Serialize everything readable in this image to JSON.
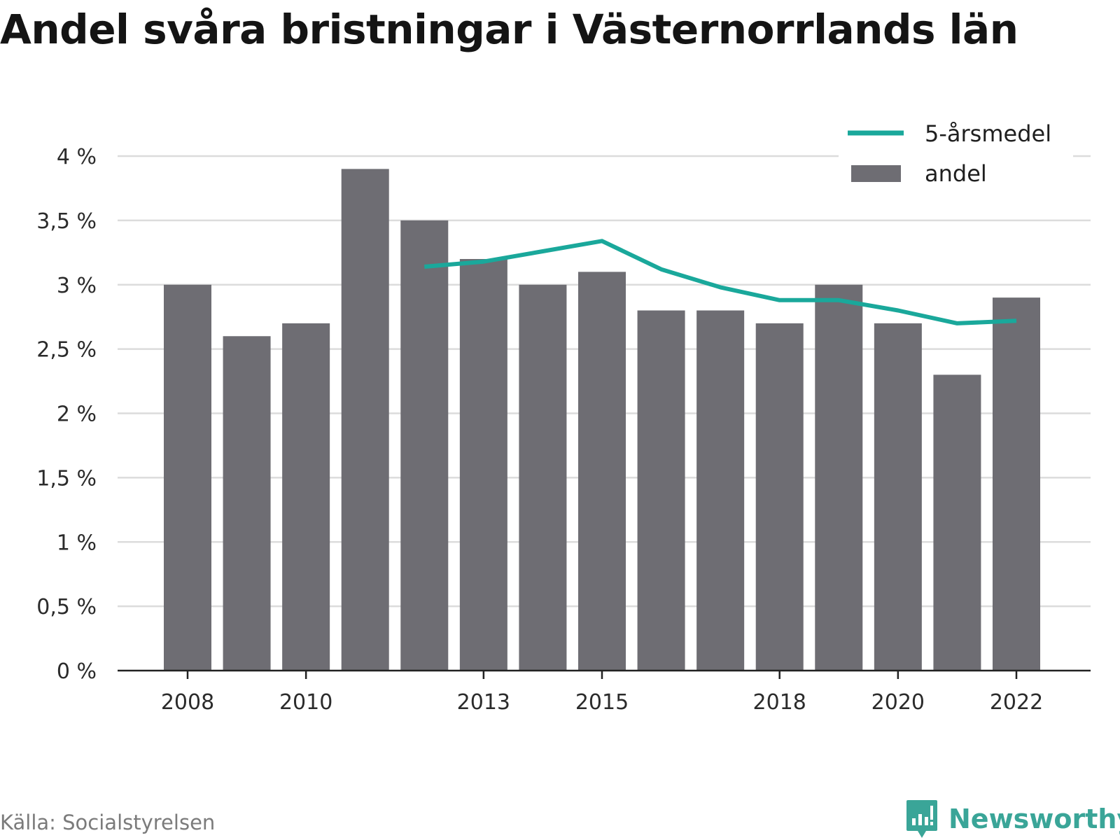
{
  "title": "Andel svåra bristningar i Västernorrlands län",
  "source": "Källa: Socialstyrelsen",
  "brand": {
    "name": "Newsworthy",
    "icon": "newsworthy-logo-icon"
  },
  "colors": {
    "bar": "#6e6d73",
    "line": "#1aa89b",
    "grid": "#dcdcdc",
    "axis": "#222222",
    "brand": "#3aa598"
  },
  "chart_data": {
    "type": "bar",
    "title": "Andel svåra bristningar i Västernorrlands län",
    "xlabel": "",
    "ylabel": "",
    "ylim": [
      0,
      4
    ],
    "grid": true,
    "legend_position": "top-right",
    "x": [
      2008,
      2009,
      2010,
      2011,
      2012,
      2013,
      2014,
      2015,
      2016,
      2017,
      2018,
      2019,
      2020,
      2021,
      2022
    ],
    "x_tick_labels": [
      "2008",
      "2010",
      "2013",
      "2015",
      "2018",
      "2020",
      "2022"
    ],
    "y_ticks": [
      0,
      0.5,
      1,
      1.5,
      2,
      2.5,
      3,
      3.5,
      4
    ],
    "y_tick_labels": [
      "0 %",
      "0,5 %",
      "1 %",
      "1,5 %",
      "2 %",
      "2,5 %",
      "3 %",
      "3,5 %",
      "4 %"
    ],
    "series": [
      {
        "name": "andel",
        "type": "bar",
        "color": "#6e6d73",
        "values": [
          3.0,
          2.6,
          2.7,
          3.9,
          3.5,
          3.2,
          3.0,
          3.1,
          2.8,
          2.8,
          2.7,
          3.0,
          2.7,
          2.3,
          2.9
        ]
      },
      {
        "name": "5-årsmedel",
        "type": "line",
        "color": "#1aa89b",
        "values": [
          null,
          null,
          null,
          null,
          3.14,
          3.18,
          3.26,
          3.34,
          3.12,
          2.98,
          2.88,
          2.88,
          2.8,
          2.7,
          2.72
        ]
      }
    ]
  }
}
